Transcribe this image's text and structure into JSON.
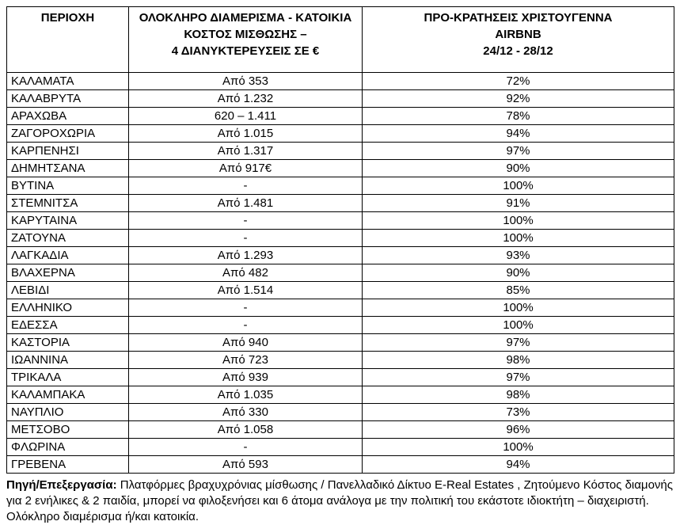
{
  "colors": {
    "border": "#000000",
    "text": "#000000",
    "background": "#ffffff"
  },
  "table": {
    "headers": [
      {
        "lines": [
          "ΠΕΡΙΟΧΗ"
        ]
      },
      {
        "lines": [
          "ΟΛΟΚΛΗΡΟ ΔΙΑΜΕΡΙΣΜΑ - ΚΑΤΟΙΚΙΑ",
          "ΚΟΣΤΟΣ ΜΙΣΘΩΣΗΣ –",
          "4 ΔΙΑΝΥΚΤΕΡΕΥΣΕΙΣ ΣΕ €"
        ]
      },
      {
        "lines": [
          "ΠΡΟ-ΚΡΑΤΗΣΕΙΣ ΧΡΙΣΤΟΥΓΕΝΝΑ",
          "AIRBNB",
          "24/12 - 28/12"
        ]
      }
    ],
    "rows": [
      [
        "ΚΑΛΑΜΑΤΑ",
        "Από 353",
        "72%"
      ],
      [
        "ΚΑΛΑΒΡΥΤΑ",
        "Από 1.232",
        "92%"
      ],
      [
        "ΑΡΑΧΩΒΑ",
        "620 – 1.411",
        "78%"
      ],
      [
        "ΖΑΓΟΡΟΧΩΡΙΑ",
        "Από 1.015",
        "94%"
      ],
      [
        "ΚΑΡΠΕΝΗΣΙ",
        "Από 1.317",
        "97%"
      ],
      [
        "ΔΗΜΗΤΣΑΝΑ",
        "Από 917€",
        "90%"
      ],
      [
        "ΒΥΤΙΝΑ",
        "-",
        "100%"
      ],
      [
        "ΣΤΕΜΝΙΤΣΑ",
        "Από 1.481",
        "91%"
      ],
      [
        "ΚΑΡΥΤΑΙΝΑ",
        "-",
        "100%"
      ],
      [
        "ΖΑΤΟΥΝΑ",
        "-",
        "100%"
      ],
      [
        "ΛΑΓΚΑΔΙΑ",
        "Από 1.293",
        "93%"
      ],
      [
        "ΒΛΑΧΕΡΝΑ",
        "Από 482",
        "90%"
      ],
      [
        "ΛΕΒΙΔΙ",
        "Από 1.514",
        "85%"
      ],
      [
        "ΕΛΛΗΝΙΚΟ",
        "-",
        "100%"
      ],
      [
        "ΕΔΕΣΣΑ",
        "-",
        "100%"
      ],
      [
        "ΚΑΣΤΟΡΙΑ",
        "Από 940",
        "97%"
      ],
      [
        "ΙΩΑΝΝΙΝΑ",
        "Από 723",
        "98%"
      ],
      [
        "ΤΡΙΚΑΛΑ",
        "Από 939",
        "97%"
      ],
      [
        "ΚΑΛΑΜΠΑΚΑ",
        "Από 1.035",
        "98%"
      ],
      [
        "ΝΑΥΠΛΙΟ",
        "Από 330",
        "73%"
      ],
      [
        "ΜΕΤΣΟΒΟ",
        "Από 1.058",
        "96%"
      ],
      [
        "ΦΛΩΡΙΝΑ",
        "-",
        "100%"
      ],
      [
        "ΓΡΕΒΕΝΑ",
        "Από 593",
        "94%"
      ]
    ]
  },
  "footer": {
    "label": "Πηγή/Επεξεργασία:",
    "text": " Πλατφόρμες βραχυχρόνιας μίσθωσης / Πανελλαδικό Δίκτυο E-Real Estates , Ζητούμενο Κόστος διαμονής για 2 ενήλικες & 2 παιδία, μπορεί να φιλοξενήσει και 6 άτομα ανάλογα με την πολιτική του εκάστοτε ιδιοκτήτη – διαχειριστή. Ολόκληρο διαμέρισμα ή/και κατοικία."
  }
}
